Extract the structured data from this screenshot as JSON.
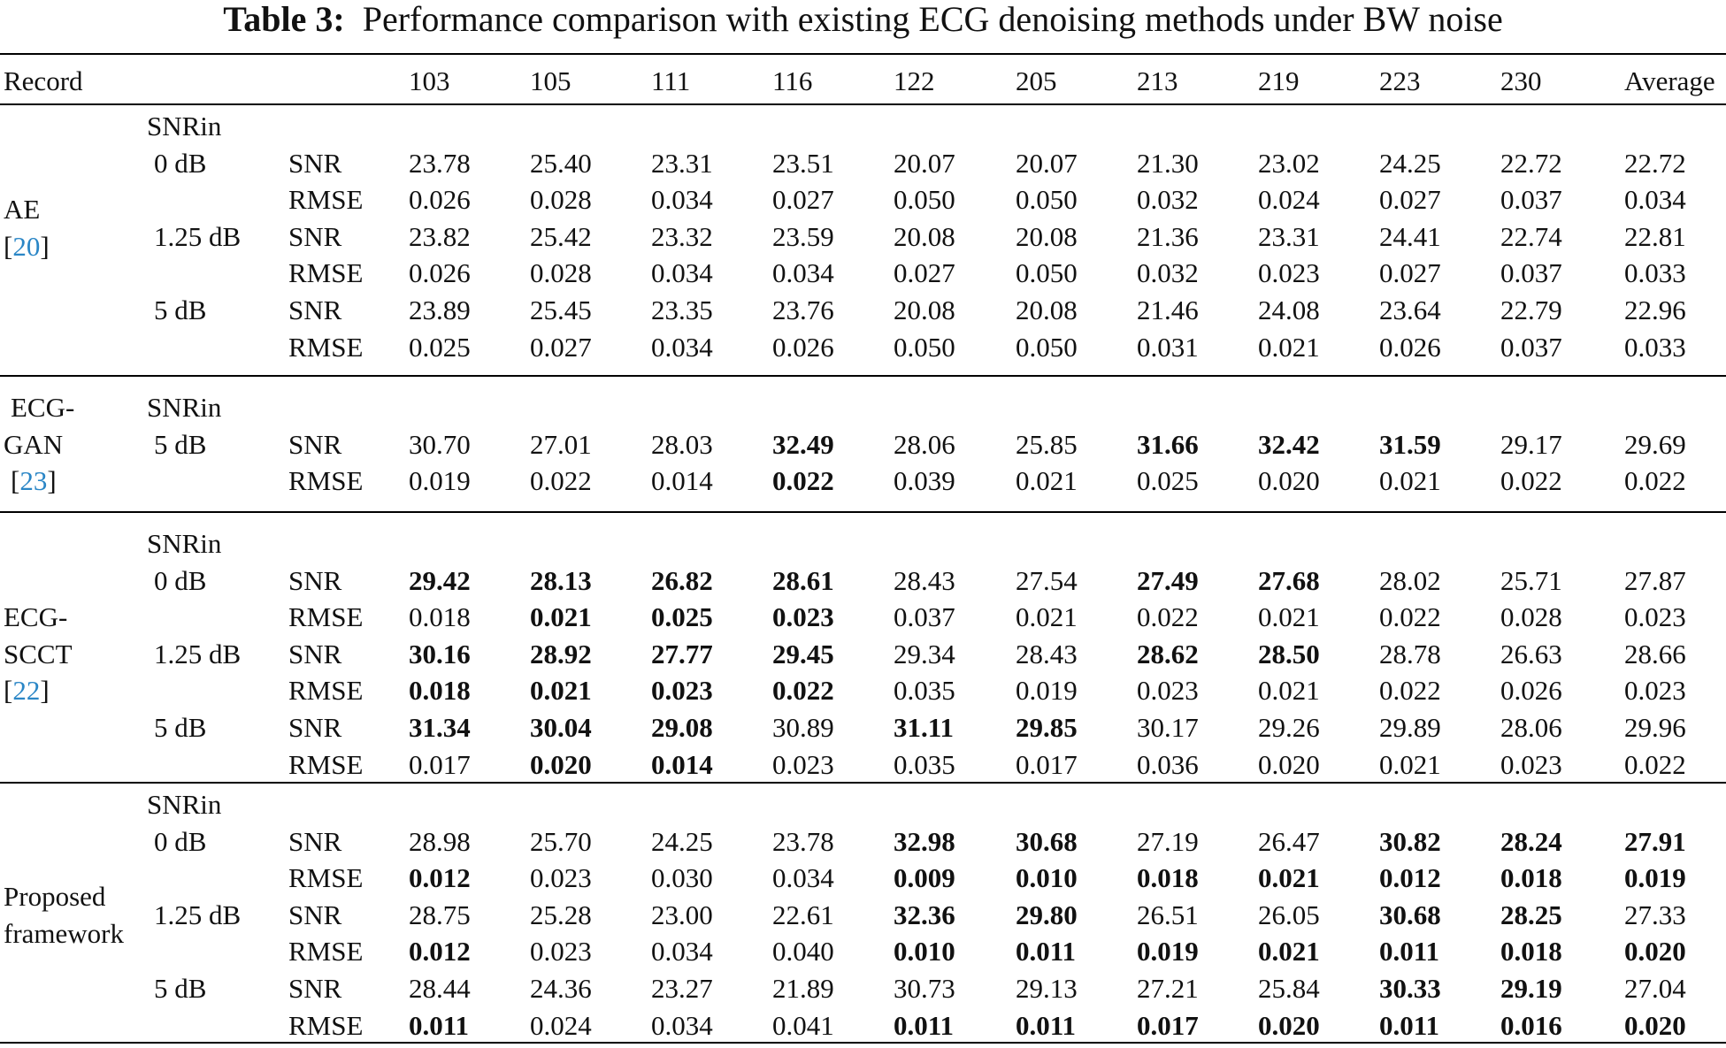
{
  "caption": {
    "label": "Table 3:",
    "text": "Performance comparison with existing ECG denoising methods under BW noise"
  },
  "header": {
    "record": "Record",
    "records": [
      "103",
      "105",
      "111",
      "116",
      "122",
      "205",
      "213",
      "219",
      "223",
      "230"
    ],
    "average": "Average"
  },
  "methods": [
    {
      "name_lines": [
        "AE"
      ],
      "citation": "20",
      "snrin_label": "SNRin",
      "levels": [
        {
          "snr_in": "0 dB",
          "SNR": {
            "values": [
              "23.78",
              "25.40",
              "23.31",
              "23.51",
              "20.07",
              "20.07",
              "21.30",
              "23.02",
              "24.25",
              "22.72",
              "22.72"
            ],
            "bold": []
          },
          "RMSE": {
            "values": [
              "0.026",
              "0.028",
              "0.034",
              "0.027",
              "0.050",
              "0.050",
              "0.032",
              "0.024",
              "0.027",
              "0.037",
              "0.034"
            ],
            "bold": []
          }
        },
        {
          "snr_in": "1.25 dB",
          "SNR": {
            "values": [
              "23.82",
              "25.42",
              "23.32",
              "23.59",
              "20.08",
              "20.08",
              "21.36",
              "23.31",
              "24.41",
              "22.74",
              "22.81"
            ],
            "bold": []
          },
          "RMSE": {
            "values": [
              "0.026",
              "0.028",
              "0.034",
              "0.034",
              "0.027",
              "0.050",
              "0.032",
              "0.023",
              "0.027",
              "0.037",
              "0.033"
            ],
            "bold": []
          }
        },
        {
          "snr_in": "5 dB",
          "SNR": {
            "values": [
              "23.89",
              "25.45",
              "23.35",
              "23.76",
              "20.08",
              "20.08",
              "21.46",
              "24.08",
              "23.64",
              "22.79",
              "22.96"
            ],
            "bold": []
          },
          "RMSE": {
            "values": [
              "0.025",
              "0.027",
              "0.034",
              "0.026",
              "0.050",
              "0.050",
              "0.031",
              "0.021",
              "0.026",
              "0.037",
              "0.033"
            ],
            "bold": []
          }
        }
      ]
    },
    {
      "name_lines": [
        "ECG-",
        "GAN"
      ],
      "citation": "23",
      "snrin_label": "SNRin",
      "levels": [
        {
          "snr_in": "5 dB",
          "SNR": {
            "values": [
              "30.70",
              "27.01",
              "28.03",
              "32.49",
              "28.06",
              "25.85",
              "31.66",
              "32.42",
              "31.59",
              "29.17",
              "29.69"
            ],
            "bold": [
              3,
              6,
              7,
              8
            ]
          },
          "RMSE": {
            "values": [
              "0.019",
              "0.022",
              "0.014",
              "0.022",
              "0.039",
              "0.021",
              "0.025",
              "0.020",
              "0.021",
              "0.022",
              "0.022"
            ],
            "bold": [
              3
            ]
          }
        }
      ]
    },
    {
      "name_lines": [
        "ECG-",
        "SCCT"
      ],
      "citation": "22",
      "snrin_label": "SNRin",
      "levels": [
        {
          "snr_in": "0 dB",
          "SNR": {
            "values": [
              "29.42",
              "28.13",
              "26.82",
              "28.61",
              "28.43",
              "27.54",
              "27.49",
              "27.68",
              "28.02",
              "25.71",
              "27.87"
            ],
            "bold": [
              0,
              1,
              2,
              3,
              6,
              7
            ]
          },
          "RMSE": {
            "values": [
              "0.018",
              "0.021",
              "0.025",
              "0.023",
              "0.037",
              "0.021",
              "0.022",
              "0.021",
              "0.022",
              "0.028",
              "0.023"
            ],
            "bold": [
              1,
              2,
              3
            ]
          }
        },
        {
          "snr_in": "1.25 dB",
          "SNR": {
            "values": [
              "30.16",
              "28.92",
              "27.77",
              "29.45",
              "29.34",
              "28.43",
              "28.62",
              "28.50",
              "28.78",
              "26.63",
              "28.66"
            ],
            "bold": [
              0,
              1,
              2,
              3,
              6,
              7
            ]
          },
          "RMSE": {
            "values": [
              "0.018",
              "0.021",
              "0.023",
              "0.022",
              "0.035",
              "0.019",
              "0.023",
              "0.021",
              "0.022",
              "0.026",
              "0.023"
            ],
            "bold": [
              0,
              1,
              2,
              3
            ]
          }
        },
        {
          "snr_in": "5 dB",
          "SNR": {
            "values": [
              "31.34",
              "30.04",
              "29.08",
              "30.89",
              "31.11",
              "29.85",
              "30.17",
              "29.26",
              "29.89",
              "28.06",
              "29.96"
            ],
            "bold": [
              0,
              1,
              2,
              4,
              5
            ]
          },
          "RMSE": {
            "values": [
              "0.017",
              "0.020",
              "0.014",
              "0.023",
              "0.035",
              "0.017",
              "0.036",
              "0.020",
              "0.021",
              "0.023",
              "0.022"
            ],
            "bold": [
              1,
              2
            ]
          }
        }
      ]
    },
    {
      "name_lines": [
        "Proposed",
        "framework"
      ],
      "citation": "",
      "snrin_label": "SNRin",
      "levels": [
        {
          "snr_in": "0 dB",
          "SNR": {
            "values": [
              "28.98",
              "25.70",
              "24.25",
              "23.78",
              "32.98",
              "30.68",
              "27.19",
              "26.47",
              "30.82",
              "28.24",
              "27.91"
            ],
            "bold": [
              4,
              5,
              8,
              9,
              10
            ]
          },
          "RMSE": {
            "values": [
              "0.012",
              "0.023",
              "0.030",
              "0.034",
              "0.009",
              "0.010",
              "0.018",
              "0.021",
              "0.012",
              "0.018",
              "0.019"
            ],
            "bold": [
              0,
              4,
              5,
              6,
              7,
              8,
              9,
              10
            ]
          }
        },
        {
          "snr_in": "1.25 dB",
          "SNR": {
            "values": [
              "28.75",
              "25.28",
              "23.00",
              "22.61",
              "32.36",
              "29.80",
              "26.51",
              "26.05",
              "30.68",
              "28.25",
              "27.33"
            ],
            "bold": [
              4,
              5,
              8,
              9
            ]
          },
          "RMSE": {
            "values": [
              "0.012",
              "0.023",
              "0.034",
              "0.040",
              "0.010",
              "0.011",
              "0.019",
              "0.021",
              "0.011",
              "0.018",
              "0.020"
            ],
            "bold": [
              0,
              4,
              5,
              6,
              7,
              8,
              9,
              10
            ]
          }
        },
        {
          "snr_in": "5 dB",
          "SNR": {
            "values": [
              "28.44",
              "24.36",
              "23.27",
              "21.89",
              "30.73",
              "29.13",
              "27.21",
              "25.84",
              "30.33",
              "29.19",
              "27.04"
            ],
            "bold": [
              8,
              9
            ]
          },
          "RMSE": {
            "values": [
              "0.011",
              "0.024",
              "0.034",
              "0.041",
              "0.011",
              "0.011",
              "0.017",
              "0.020",
              "0.011",
              "0.016",
              "0.020"
            ],
            "bold": [
              0,
              4,
              5,
              6,
              7,
              8,
              9,
              10
            ]
          }
        }
      ]
    }
  ]
}
